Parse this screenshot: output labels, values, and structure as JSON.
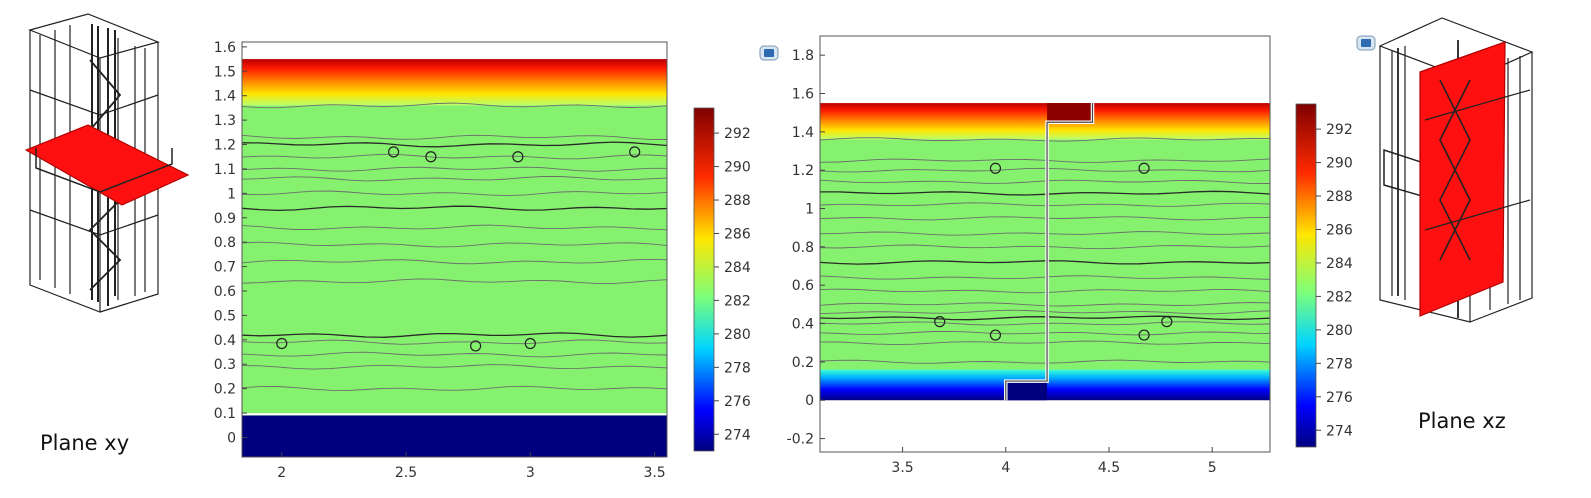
{
  "figure_labels": {
    "left_inset": "Plane xy",
    "right_inset": "Plane xz"
  },
  "colorbar_stops": [
    {
      "t": 0.0,
      "color": "#00007f"
    },
    {
      "t": 0.12,
      "color": "#0000ff"
    },
    {
      "t": 0.3,
      "color": "#00d5ff"
    },
    {
      "t": 0.45,
      "color": "#7dff7a"
    },
    {
      "t": 0.62,
      "color": "#ffe600"
    },
    {
      "t": 0.8,
      "color": "#ff2a00"
    },
    {
      "t": 1.0,
      "color": "#7f0000"
    }
  ],
  "chart_data": [
    {
      "type": "heatmap",
      "title": "",
      "xlabel": "",
      "ylabel": "",
      "xlim": [
        1.84,
        3.55
      ],
      "ylim": [
        -0.08,
        1.62
      ],
      "xticks": [
        "2",
        "2.5",
        "3",
        "3.5"
      ],
      "yticks": [
        "0",
        "0.1",
        "0.2",
        "0.3",
        "0.4",
        "0.5",
        "0.6",
        "0.7",
        "0.8",
        "0.9",
        "1",
        "1.1",
        "1.2",
        "1.3",
        "1.4",
        "1.5",
        "1.6"
      ],
      "colorbar": {
        "range": [
          273,
          293.5
        ],
        "ticks": [
          "274",
          "276",
          "278",
          "280",
          "282",
          "284",
          "286",
          "288",
          "290",
          "292"
        ]
      },
      "temperature_layers": [
        {
          "y": [
            -0.08,
            0.09
          ],
          "T": 273.2
        },
        {
          "y": [
            0.09,
            1.36
          ],
          "T": 283.0
        },
        {
          "y": [
            1.36,
            1.55
          ],
          "T_range": [
            285.0,
            293.0
          ]
        }
      ],
      "contour_lines_y": [
        0.2,
        0.29,
        0.34,
        0.39,
        0.42,
        0.64,
        0.72,
        0.79,
        0.86,
        0.94,
        1.0,
        1.06,
        1.1,
        1.15,
        1.2,
        1.23,
        1.36
      ],
      "circles": [
        [
          2.0,
          0.385
        ],
        [
          2.78,
          0.375
        ],
        [
          3.0,
          0.385
        ],
        [
          2.45,
          1.17
        ],
        [
          2.6,
          1.15
        ],
        [
          2.95,
          1.15
        ],
        [
          3.42,
          1.17
        ]
      ]
    },
    {
      "type": "heatmap",
      "title": "",
      "xlabel": "",
      "ylabel": "",
      "xlim": [
        3.1,
        5.28
      ],
      "ylim": [
        -0.27,
        1.9
      ],
      "xticks": [
        "3.5",
        "4",
        "4.5",
        "5"
      ],
      "yticks": [
        "-0.2",
        "0",
        "0.2",
        "0.4",
        "0.6",
        "0.8",
        "1",
        "1.2",
        "1.4",
        "1.6",
        "1.8"
      ],
      "colorbar": {
        "range": [
          273,
          293.5
        ],
        "ticks": [
          "274",
          "276",
          "278",
          "280",
          "282",
          "284",
          "286",
          "288",
          "290",
          "292"
        ]
      },
      "temperature_layers": [
        {
          "y": [
            0.0,
            0.16
          ],
          "T_range": [
            273.2,
            279.5
          ]
        },
        {
          "y": [
            0.16,
            1.36
          ],
          "T": 283.0
        },
        {
          "y": [
            1.36,
            1.55
          ],
          "T_range": [
            285.0,
            293.0
          ]
        }
      ],
      "step_outline": [
        [
          4.0,
          0.0
        ],
        [
          4.0,
          0.1
        ],
        [
          4.2,
          0.1
        ],
        [
          4.2,
          1.45
        ],
        [
          4.42,
          1.45
        ],
        [
          4.42,
          1.55
        ]
      ],
      "contour_lines_y": [
        0.2,
        0.3,
        0.35,
        0.4,
        0.43,
        0.46,
        0.5,
        0.57,
        0.64,
        0.72,
        0.8,
        0.87,
        0.95,
        1.02,
        1.08,
        1.14,
        1.2,
        1.25,
        1.36
      ],
      "circles": [
        [
          3.95,
          1.21
        ],
        [
          4.67,
          1.21
        ],
        [
          3.68,
          0.41
        ],
        [
          3.95,
          0.34
        ],
        [
          4.67,
          0.34
        ],
        [
          4.78,
          0.41
        ]
      ]
    }
  ]
}
